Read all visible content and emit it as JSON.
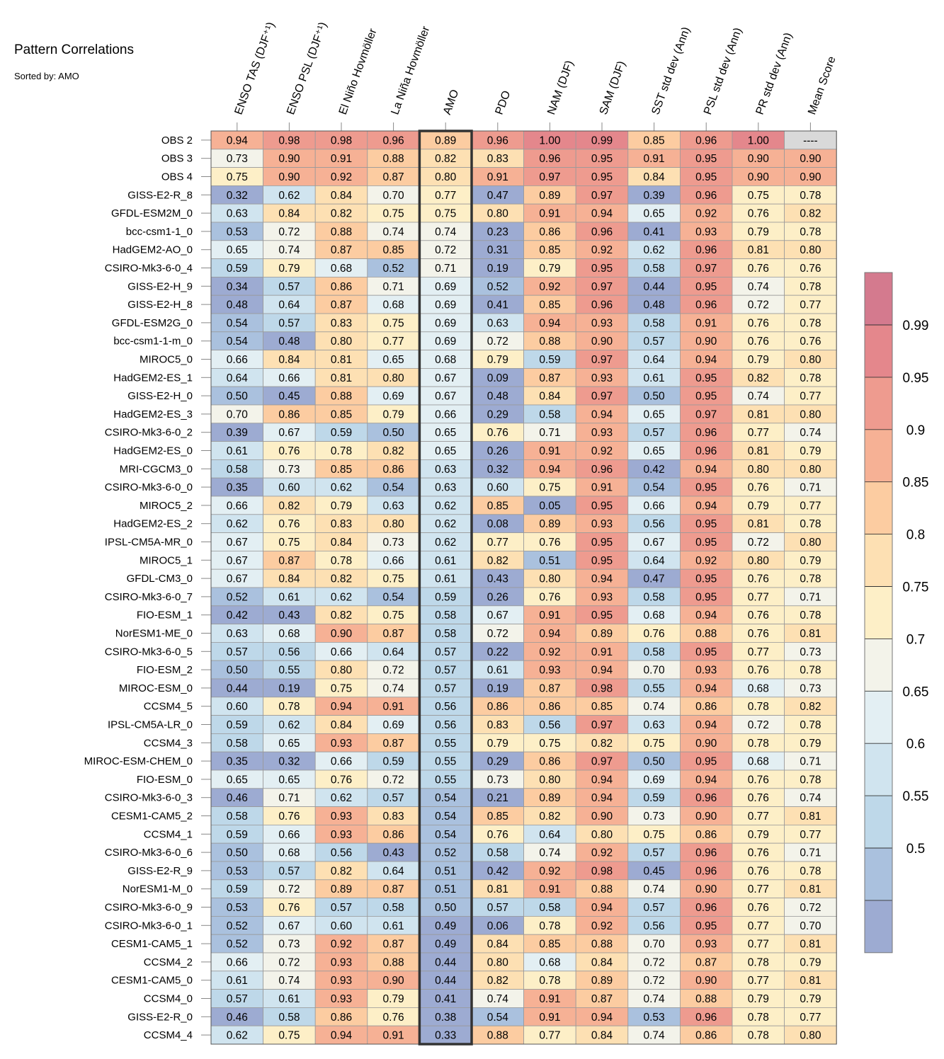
{
  "title": "Pattern Correlations",
  "subtitle": "Sorted by: AMO",
  "chart_data": {
    "type": "heatmap",
    "title": "Pattern Correlations",
    "sorted_by": "AMO",
    "highlight_column": "AMO",
    "missing_label": "----",
    "columns": [
      "ENSO TAS (DJF⁺¹)",
      "ENSO PSL (DJF⁺¹)",
      "El Niño Hovmöller",
      "La Niña Hovmöller",
      "AMO",
      "PDO",
      "NAM (DJF)",
      "SAM (DJF)",
      "SST std dev (Ann)",
      "PSL std dev (Ann)",
      "PR std dev (Ann)",
      "Mean Score"
    ],
    "rows": [
      "OBS 2",
      "OBS 3",
      "OBS 4",
      "GISS-E2-R_8",
      "GFDL-ESM2M_0",
      "bcc-csm1-1_0",
      "HadGEM2-AO_0",
      "CSIRO-Mk3-6-0_4",
      "GISS-E2-H_9",
      "GISS-E2-H_8",
      "GFDL-ESM2G_0",
      "bcc-csm1-1-m_0",
      "MIROC5_0",
      "HadGEM2-ES_1",
      "GISS-E2-H_0",
      "HadGEM2-ES_3",
      "CSIRO-Mk3-6-0_2",
      "HadGEM2-ES_0",
      "MRI-CGCM3_0",
      "CSIRO-Mk3-6-0_0",
      "MIROC5_2",
      "HadGEM2-ES_2",
      "IPSL-CM5A-MR_0",
      "MIROC5_1",
      "GFDL-CM3_0",
      "CSIRO-Mk3-6-0_7",
      "FIO-ESM_1",
      "NorESM1-ME_0",
      "CSIRO-Mk3-6-0_5",
      "FIO-ESM_2",
      "MIROC-ESM_0",
      "CCSM4_5",
      "IPSL-CM5A-LR_0",
      "CCSM4_3",
      "MIROC-ESM-CHEM_0",
      "FIO-ESM_0",
      "CSIRO-Mk3-6-0_3",
      "CESM1-CAM5_2",
      "CCSM4_1",
      "CSIRO-Mk3-6-0_6",
      "GISS-E2-R_9",
      "NorESM1-M_0",
      "CSIRO-Mk3-6-0_9",
      "CSIRO-Mk3-6-0_1",
      "CESM1-CAM5_1",
      "CCSM4_2",
      "CESM1-CAM5_0",
      "CCSM4_0",
      "GISS-E2-R_0",
      "CCSM4_4"
    ],
    "values": [
      [
        0.94,
        0.98,
        0.98,
        0.96,
        0.89,
        0.96,
        1.0,
        0.99,
        0.85,
        0.96,
        1.0,
        null
      ],
      [
        0.73,
        0.9,
        0.91,
        0.88,
        0.82,
        0.83,
        0.96,
        0.95,
        0.91,
        0.95,
        0.9,
        0.9
      ],
      [
        0.75,
        0.9,
        0.92,
        0.87,
        0.8,
        0.91,
        0.97,
        0.95,
        0.84,
        0.95,
        0.9,
        0.9
      ],
      [
        0.32,
        0.62,
        0.84,
        0.7,
        0.77,
        0.47,
        0.89,
        0.97,
        0.39,
        0.96,
        0.75,
        0.78
      ],
      [
        0.63,
        0.84,
        0.82,
        0.75,
        0.75,
        0.8,
        0.91,
        0.94,
        0.65,
        0.92,
        0.76,
        0.82
      ],
      [
        0.53,
        0.72,
        0.88,
        0.74,
        0.74,
        0.23,
        0.86,
        0.96,
        0.41,
        0.93,
        0.79,
        0.78
      ],
      [
        0.65,
        0.74,
        0.87,
        0.85,
        0.72,
        0.31,
        0.85,
        0.92,
        0.62,
        0.96,
        0.81,
        0.8
      ],
      [
        0.59,
        0.79,
        0.68,
        0.52,
        0.71,
        0.19,
        0.79,
        0.95,
        0.58,
        0.97,
        0.76,
        0.76
      ],
      [
        0.34,
        0.57,
        0.86,
        0.71,
        0.69,
        0.52,
        0.92,
        0.97,
        0.44,
        0.95,
        0.74,
        0.78
      ],
      [
        0.48,
        0.64,
        0.87,
        0.68,
        0.69,
        0.41,
        0.85,
        0.96,
        0.48,
        0.96,
        0.72,
        0.77
      ],
      [
        0.54,
        0.57,
        0.83,
        0.75,
        0.69,
        0.63,
        0.94,
        0.93,
        0.58,
        0.91,
        0.76,
        0.78
      ],
      [
        0.54,
        0.48,
        0.8,
        0.77,
        0.69,
        0.72,
        0.88,
        0.9,
        0.57,
        0.9,
        0.76,
        0.76
      ],
      [
        0.66,
        0.84,
        0.81,
        0.65,
        0.68,
        0.79,
        0.59,
        0.97,
        0.64,
        0.94,
        0.79,
        0.8
      ],
      [
        0.64,
        0.66,
        0.81,
        0.8,
        0.67,
        0.09,
        0.87,
        0.93,
        0.61,
        0.95,
        0.82,
        0.78
      ],
      [
        0.5,
        0.45,
        0.88,
        0.69,
        0.67,
        0.48,
        0.84,
        0.97,
        0.5,
        0.95,
        0.74,
        0.77
      ],
      [
        0.7,
        0.86,
        0.85,
        0.79,
        0.66,
        0.29,
        0.58,
        0.94,
        0.65,
        0.97,
        0.81,
        0.8
      ],
      [
        0.39,
        0.67,
        0.59,
        0.5,
        0.65,
        0.76,
        0.71,
        0.93,
        0.57,
        0.96,
        0.77,
        0.74
      ],
      [
        0.61,
        0.76,
        0.78,
        0.82,
        0.65,
        0.26,
        0.91,
        0.92,
        0.65,
        0.96,
        0.81,
        0.79
      ],
      [
        0.58,
        0.73,
        0.85,
        0.86,
        0.63,
        0.32,
        0.94,
        0.96,
        0.42,
        0.94,
        0.8,
        0.8
      ],
      [
        0.35,
        0.6,
        0.62,
        0.54,
        0.63,
        0.6,
        0.75,
        0.91,
        0.54,
        0.95,
        0.76,
        0.71
      ],
      [
        0.66,
        0.82,
        0.79,
        0.63,
        0.62,
        0.85,
        0.05,
        0.95,
        0.66,
        0.94,
        0.79,
        0.77
      ],
      [
        0.62,
        0.76,
        0.83,
        0.8,
        0.62,
        0.08,
        0.89,
        0.93,
        0.56,
        0.95,
        0.81,
        0.78
      ],
      [
        0.67,
        0.75,
        0.84,
        0.73,
        0.62,
        0.77,
        0.76,
        0.95,
        0.67,
        0.95,
        0.72,
        0.8
      ],
      [
        0.67,
        0.87,
        0.78,
        0.66,
        0.61,
        0.82,
        0.51,
        0.95,
        0.64,
        0.92,
        0.8,
        0.79
      ],
      [
        0.67,
        0.84,
        0.82,
        0.75,
        0.61,
        0.43,
        0.8,
        0.94,
        0.47,
        0.95,
        0.76,
        0.78
      ],
      [
        0.52,
        0.61,
        0.62,
        0.54,
        0.59,
        0.26,
        0.76,
        0.93,
        0.58,
        0.95,
        0.77,
        0.71
      ],
      [
        0.42,
        0.43,
        0.82,
        0.75,
        0.58,
        0.67,
        0.91,
        0.95,
        0.68,
        0.94,
        0.76,
        0.78
      ],
      [
        0.63,
        0.68,
        0.9,
        0.87,
        0.58,
        0.72,
        0.94,
        0.89,
        0.76,
        0.88,
        0.76,
        0.81
      ],
      [
        0.57,
        0.56,
        0.66,
        0.64,
        0.57,
        0.22,
        0.92,
        0.91,
        0.58,
        0.95,
        0.77,
        0.73
      ],
      [
        0.5,
        0.55,
        0.8,
        0.72,
        0.57,
        0.61,
        0.93,
        0.94,
        0.7,
        0.93,
        0.76,
        0.78
      ],
      [
        0.44,
        0.19,
        0.75,
        0.74,
        0.57,
        0.19,
        0.87,
        0.98,
        0.55,
        0.94,
        0.68,
        0.73
      ],
      [
        0.6,
        0.78,
        0.94,
        0.91,
        0.56,
        0.86,
        0.86,
        0.85,
        0.74,
        0.86,
        0.78,
        0.82
      ],
      [
        0.59,
        0.62,
        0.84,
        0.69,
        0.56,
        0.83,
        0.56,
        0.97,
        0.63,
        0.94,
        0.72,
        0.78
      ],
      [
        0.58,
        0.65,
        0.93,
        0.87,
        0.55,
        0.79,
        0.75,
        0.82,
        0.75,
        0.9,
        0.78,
        0.79
      ],
      [
        0.35,
        0.32,
        0.66,
        0.59,
        0.55,
        0.29,
        0.86,
        0.97,
        0.5,
        0.95,
        0.68,
        0.71
      ],
      [
        0.65,
        0.65,
        0.76,
        0.72,
        0.55,
        0.73,
        0.8,
        0.94,
        0.69,
        0.94,
        0.76,
        0.78
      ],
      [
        0.46,
        0.71,
        0.62,
        0.57,
        0.54,
        0.21,
        0.89,
        0.94,
        0.59,
        0.96,
        0.76,
        0.74
      ],
      [
        0.58,
        0.76,
        0.93,
        0.83,
        0.54,
        0.85,
        0.82,
        0.9,
        0.73,
        0.9,
        0.77,
        0.81
      ],
      [
        0.59,
        0.66,
        0.93,
        0.86,
        0.54,
        0.76,
        0.64,
        0.8,
        0.75,
        0.86,
        0.79,
        0.77
      ],
      [
        0.5,
        0.68,
        0.56,
        0.43,
        0.52,
        0.58,
        0.74,
        0.92,
        0.57,
        0.96,
        0.76,
        0.71
      ],
      [
        0.53,
        0.57,
        0.82,
        0.64,
        0.51,
        0.42,
        0.92,
        0.98,
        0.45,
        0.96,
        0.76,
        0.78
      ],
      [
        0.59,
        0.72,
        0.89,
        0.87,
        0.51,
        0.81,
        0.91,
        0.88,
        0.74,
        0.9,
        0.77,
        0.81
      ],
      [
        0.53,
        0.76,
        0.57,
        0.58,
        0.5,
        0.57,
        0.58,
        0.94,
        0.57,
        0.96,
        0.76,
        0.72
      ],
      [
        0.52,
        0.67,
        0.6,
        0.61,
        0.49,
        0.06,
        0.78,
        0.92,
        0.56,
        0.95,
        0.77,
        0.7
      ],
      [
        0.52,
        0.73,
        0.92,
        0.87,
        0.49,
        0.84,
        0.85,
        0.88,
        0.7,
        0.93,
        0.77,
        0.81
      ],
      [
        0.66,
        0.72,
        0.93,
        0.88,
        0.44,
        0.8,
        0.68,
        0.84,
        0.72,
        0.87,
        0.78,
        0.79
      ],
      [
        0.61,
        0.74,
        0.93,
        0.9,
        0.44,
        0.82,
        0.78,
        0.89,
        0.72,
        0.9,
        0.77,
        0.81
      ],
      [
        0.57,
        0.61,
        0.93,
        0.79,
        0.41,
        0.74,
        0.91,
        0.87,
        0.74,
        0.88,
        0.79,
        0.79
      ],
      [
        0.46,
        0.58,
        0.86,
        0.76,
        0.38,
        0.54,
        0.91,
        0.94,
        0.53,
        0.96,
        0.78,
        0.77
      ],
      [
        0.62,
        0.75,
        0.94,
        0.91,
        0.33,
        0.88,
        0.77,
        0.84,
        0.74,
        0.86,
        0.78,
        0.8
      ]
    ],
    "colorbar": {
      "ticks": [
        "0.99",
        "0.95",
        "0.9",
        "0.85",
        "0.8",
        "0.75",
        "0.7",
        "0.65",
        "0.6",
        "0.55",
        "0.5"
      ],
      "tick_values": [
        0.99,
        0.95,
        0.9,
        0.85,
        0.8,
        0.75,
        0.7,
        0.65,
        0.6,
        0.55,
        0.5
      ],
      "colors_low_to_high": [
        "#9dabd2",
        "#aac1de",
        "#bed8e9",
        "#d0e4ef",
        "#e3eff3",
        "#f3f3ea",
        "#fdefc7",
        "#fde0b3",
        "#fccca1",
        "#f6b195",
        "#ee9b8f",
        "#e4878c",
        "#d47a8e"
      ]
    },
    "missing_color": "#d9d9d9"
  }
}
